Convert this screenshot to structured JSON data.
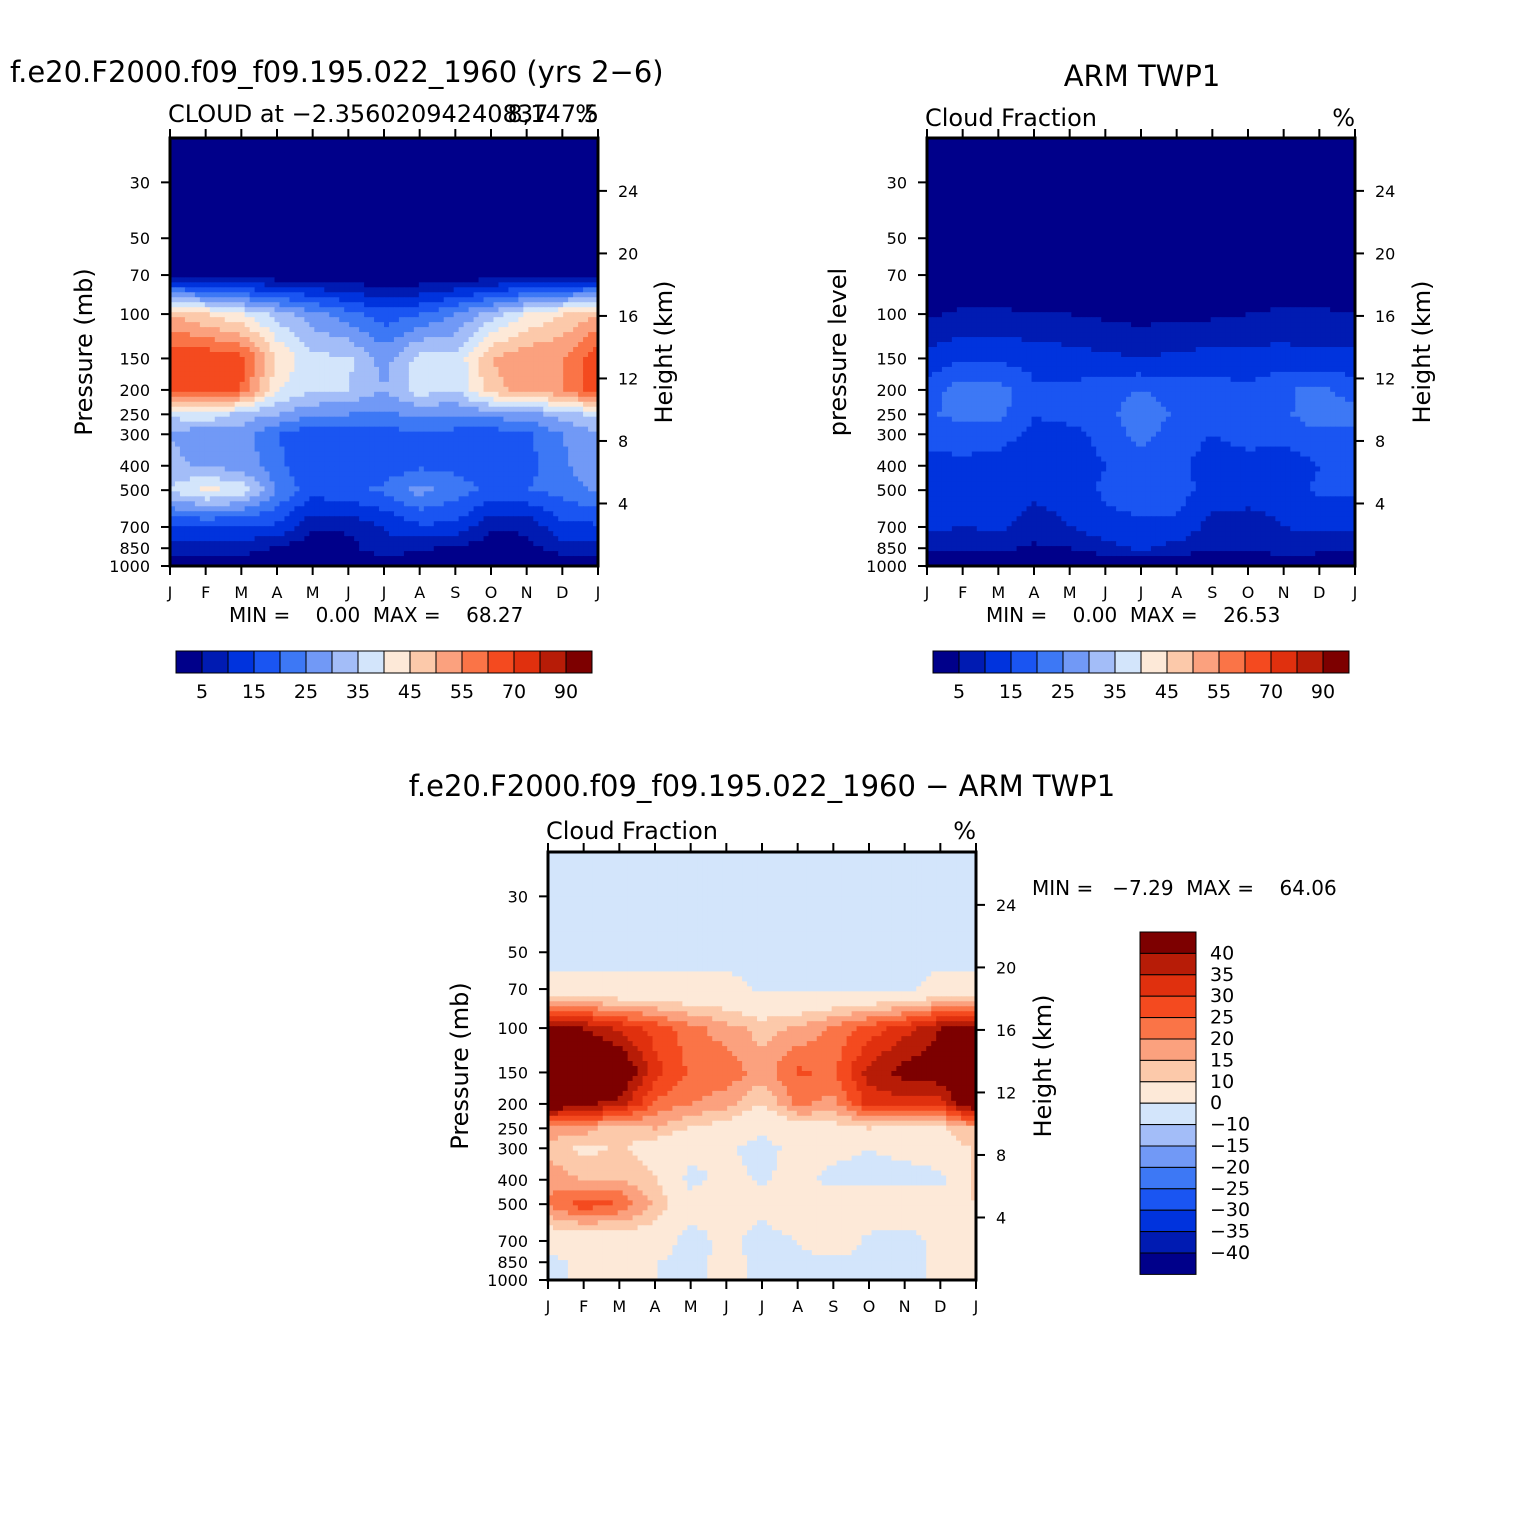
{
  "colors": {
    "cmap_abs": [
      "#00008a",
      "#001bb2",
      "#0033dd",
      "#1a55f2",
      "#3d78f5",
      "#7199f6",
      "#a3bdf8",
      "#d3e5fb",
      "#fde9d8",
      "#fcc9aa",
      "#fba17e",
      "#fa7447",
      "#f44a1f",
      "#e0300e",
      "#b71c07",
      "#7d0000"
    ],
    "cmap_diff": [
      "#00008a",
      "#001bb2",
      "#0033dd",
      "#1a55f2",
      "#3d78f5",
      "#7199f6",
      "#a3bdf8",
      "#d3e5fb",
      "#fde9d8",
      "#fcc9aa",
      "#fba17e",
      "#fa7447",
      "#f44a1f",
      "#e0300e",
      "#b71c07",
      "#7d0000"
    ]
  },
  "panel1": {
    "title": "f.e20.F2000.f09_f09.195.022_1960 (yrs 2−6)",
    "subtitle_left": "CLOUD at −2.35602094240837",
    "subtitle_right": "%",
    "subtitle_overlap": "8,147.5",
    "ylabel": "Pressure (mb)",
    "y2label": "Height (km)",
    "minmax": "MIN =    0.00  MAX =    68.27",
    "colorbar_labels": [
      "5",
      "15",
      "25",
      "35",
      "45",
      "55",
      "70",
      "90"
    ]
  },
  "panel2": {
    "title": "ARM TWP1",
    "subtitle_left": "Cloud Fraction",
    "subtitle_right": "%",
    "ylabel": "pressure level",
    "y2label": "Height (km)",
    "minmax": "MIN =    0.00  MAX =    26.53",
    "colorbar_labels": [
      "5",
      "15",
      "25",
      "35",
      "45",
      "55",
      "70",
      "90"
    ]
  },
  "panel3": {
    "title": "f.e20.F2000.f09_f09.195.022_1960 − ARM TWP1",
    "subtitle_left": "Cloud Fraction",
    "subtitle_right": "%",
    "ylabel": "Pressure (mb)",
    "y2label": "Height (km)",
    "minmax": "MIN =   −7.29  MAX =    64.06",
    "colorbar_labels": [
      "40",
      "35",
      "30",
      "25",
      "20",
      "15",
      "10",
      "0",
      "−10",
      "−15",
      "−20",
      "−25",
      "−30",
      "−35",
      "−40"
    ]
  },
  "chart_data": [
    {
      "type": "heatmap",
      "title": "f.e20.F2000.f09_f09.195.022_1960 (yrs 2−6)",
      "xlabel": "",
      "ylabel": "Pressure (mb)",
      "y2label": "Height (km)",
      "x": [
        "J",
        "F",
        "M",
        "A",
        "M",
        "J",
        "J",
        "A",
        "S",
        "O",
        "N",
        "D",
        "J"
      ],
      "y_pressure_ticks": [
        30,
        50,
        70,
        100,
        150,
        200,
        250,
        300,
        400,
        500,
        700,
        850,
        1000
      ],
      "y_height_ticks": [
        4,
        8,
        12,
        16,
        20,
        24
      ],
      "levels": [
        0,
        5,
        10,
        15,
        20,
        25,
        30,
        35,
        40,
        45,
        50,
        55,
        60,
        70,
        80,
        90,
        100
      ],
      "values": [
        [
          0,
          0,
          0,
          0,
          0,
          0,
          0,
          0,
          0,
          0,
          0,
          0,
          0
        ],
        [
          0,
          0,
          0,
          0,
          0,
          0,
          0,
          0,
          0,
          0,
          0,
          0,
          0
        ],
        [
          3,
          3,
          2,
          1,
          1,
          0,
          0,
          0,
          1,
          2,
          2,
          3,
          3
        ],
        [
          50,
          45,
          40,
          33,
          27,
          22,
          17,
          20,
          25,
          32,
          40,
          45,
          50
        ],
        [
          64,
          64,
          62,
          45,
          36,
          36,
          28,
          37,
          36,
          50,
          54,
          55,
          64
        ],
        [
          64,
          64,
          60,
          40,
          36,
          35,
          30,
          38,
          35,
          48,
          52,
          55,
          64
        ],
        [
          36,
          40,
          33,
          30,
          26,
          25,
          24,
          26,
          25,
          27,
          28,
          32,
          37
        ],
        [
          30,
          25,
          28,
          20,
          16,
          18,
          17,
          20,
          18,
          17,
          19,
          25,
          29
        ],
        [
          32,
          29,
          28,
          22,
          15,
          16,
          17,
          19,
          19,
          17,
          18,
          24,
          29
        ],
        [
          35,
          42,
          38,
          25,
          17,
          19,
          21,
          27,
          22,
          19,
          20,
          22,
          26
        ],
        [
          14,
          14,
          14,
          14,
          6,
          6,
          10,
          14,
          14,
          6,
          6,
          14,
          14
        ],
        [
          8,
          8,
          8,
          4,
          2,
          3,
          9,
          6,
          4,
          2,
          3,
          8,
          8
        ],
        [
          0,
          0,
          0,
          0,
          0,
          0,
          0,
          0,
          0,
          0,
          0,
          0,
          0
        ]
      ]
    },
    {
      "type": "heatmap",
      "title": "ARM TWP1",
      "xlabel": "",
      "ylabel": "pressure level",
      "y2label": "Height (km)",
      "x": [
        "J",
        "F",
        "M",
        "A",
        "M",
        "J",
        "J",
        "A",
        "S",
        "O",
        "N",
        "D",
        "J"
      ],
      "y_pressure_ticks": [
        30,
        50,
        70,
        100,
        150,
        200,
        250,
        300,
        400,
        500,
        700,
        850,
        1000
      ],
      "y_height_ticks": [
        4,
        8,
        12,
        16,
        20,
        24
      ],
      "levels": [
        0,
        5,
        10,
        15,
        20,
        25,
        30,
        35,
        40,
        45,
        50,
        55,
        60,
        70,
        80,
        90,
        100
      ],
      "values": [
        [
          0,
          0,
          0,
          0,
          0,
          0,
          0,
          0,
          0,
          0,
          0,
          0,
          0
        ],
        [
          0,
          0,
          0,
          0,
          0,
          0,
          0,
          0,
          0,
          0,
          0,
          0,
          0
        ],
        [
          0,
          0,
          0,
          0,
          0,
          0,
          0,
          0,
          0,
          0,
          0,
          0,
          0
        ],
        [
          4,
          6,
          6,
          5,
          5,
          4,
          3,
          4,
          4,
          5,
          6,
          6,
          5
        ],
        [
          12,
          14,
          14,
          13,
          12,
          11,
          10,
          11,
          12,
          12,
          12,
          11,
          12
        ],
        [
          17,
          23,
          22,
          16,
          16,
          18,
          20,
          17,
          17,
          16,
          19,
          22,
          17
        ],
        [
          19,
          22,
          22,
          15,
          17,
          18,
          24,
          19,
          18,
          17,
          19,
          23,
          22
        ],
        [
          16,
          17,
          17,
          14,
          13,
          17,
          22,
          17,
          15,
          17,
          17,
          19,
          18
        ],
        [
          14,
          14,
          13,
          11,
          12,
          15,
          18,
          16,
          13,
          13,
          12,
          15,
          16
        ],
        [
          14,
          14,
          13,
          11,
          12,
          16,
          18,
          17,
          13,
          12,
          12,
          16,
          16
        ],
        [
          11,
          10,
          11,
          8,
          10,
          13,
          14,
          14,
          8,
          8,
          10,
          11,
          11
        ],
        [
          6,
          6,
          6,
          4,
          5,
          8,
          11,
          8,
          6,
          6,
          8,
          7,
          7
        ],
        [
          0,
          0,
          0,
          0,
          0,
          0,
          0,
          0,
          0,
          0,
          0,
          0,
          0
        ]
      ]
    },
    {
      "type": "heatmap",
      "title": "f.e20.F2000.f09_f09.195.022_1960 − ARM TWP1",
      "xlabel": "",
      "ylabel": "Pressure (mb)",
      "y2label": "Height (km)",
      "x": [
        "J",
        "F",
        "M",
        "A",
        "M",
        "J",
        "J",
        "A",
        "S",
        "O",
        "N",
        "D",
        "J"
      ],
      "y_pressure_ticks": [
        30,
        50,
        70,
        100,
        150,
        200,
        250,
        300,
        400,
        500,
        700,
        850,
        1000
      ],
      "y_height_ticks": [
        4,
        8,
        12,
        16,
        20,
        24
      ],
      "levels": [
        -100,
        -40,
        -35,
        -30,
        -25,
        -20,
        -15,
        -10,
        0,
        10,
        15,
        20,
        25,
        30,
        35,
        40,
        100
      ],
      "values": [
        [
          -2,
          -2,
          -2,
          -2,
          -2,
          -2,
          -2,
          -2,
          -2,
          -2,
          -2,
          -2,
          -2
        ],
        [
          -2,
          -2,
          -2,
          -2,
          -2,
          -2,
          -2,
          -2,
          -2,
          -2,
          -2,
          -2,
          -2
        ],
        [
          2,
          2,
          2,
          2,
          2,
          2,
          -1,
          -1,
          -1,
          -1,
          -1,
          2,
          2
        ],
        [
          45,
          40,
          34,
          28,
          22,
          17,
          13,
          16,
          21,
          27,
          33,
          40,
          45
        ],
        [
          52,
          50,
          48,
          32,
          24,
          24,
          17,
          26,
          24,
          37,
          42,
          44,
          52
        ],
        [
          48,
          41,
          38,
          24,
          20,
          17,
          10,
          21,
          18,
          32,
          33,
          33,
          48
        ],
        [
          17,
          18,
          11,
          15,
          9,
          7,
          1,
          7,
          7,
          10,
          9,
          9,
          15
        ],
        [
          14,
          8,
          11,
          6,
          3,
          1,
          -3,
          3,
          3,
          0,
          2,
          6,
          11
        ],
        [
          18,
          15,
          15,
          11,
          -3,
          3,
          -1,
          3,
          -3,
          -3,
          -3,
          -3,
          13
        ],
        [
          21,
          28,
          25,
          14,
          5,
          3,
          3,
          10,
          9,
          7,
          8,
          6,
          10
        ],
        [
          3,
          4,
          3,
          6,
          -4,
          3,
          -4,
          0,
          6,
          -2,
          -4,
          3,
          3
        ],
        [
          -2,
          2,
          2,
          0,
          -3,
          3,
          -2,
          -2,
          -2,
          -1,
          -2,
          1,
          1
        ],
        [
          0,
          0,
          0,
          0,
          0,
          0,
          0,
          0,
          0,
          0,
          0,
          0,
          0
        ]
      ]
    }
  ]
}
